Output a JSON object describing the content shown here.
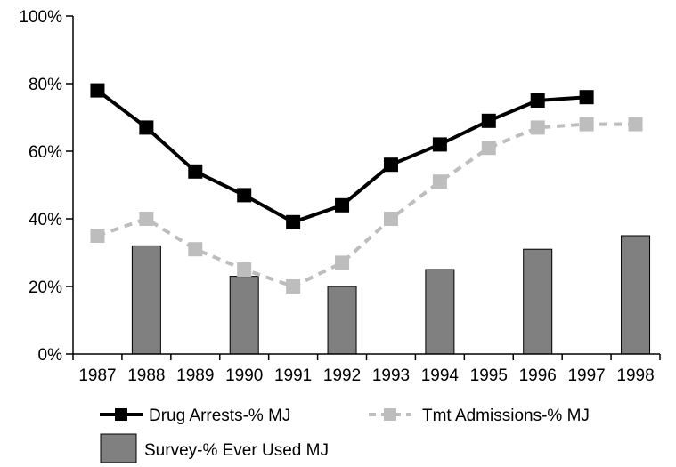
{
  "chart_data": {
    "type": "bar+line",
    "categories": [
      "1987",
      "1988",
      "1989",
      "1990",
      "1991",
      "1992",
      "1993",
      "1994",
      "1995",
      "1996",
      "1997",
      "1998"
    ],
    "ylim": [
      0,
      100
    ],
    "y_ticks": [
      0,
      20,
      40,
      60,
      80,
      100
    ],
    "y_tick_labels": [
      "0%",
      "20%",
      "40%",
      "60%",
      "80%",
      "100%"
    ],
    "grid": false,
    "legend_position": "bottom",
    "series": [
      {
        "name": "Drug Arrests-% MJ",
        "kind": "line",
        "style": "solid",
        "marker": "square",
        "color": "#000000",
        "values": [
          78,
          67,
          54,
          47,
          39,
          44,
          56,
          62,
          69,
          75,
          76,
          null
        ]
      },
      {
        "name": "Tmt Admissions-% MJ",
        "kind": "line",
        "style": "dashed",
        "marker": "square",
        "color": "#bdbdbd",
        "values": [
          35,
          40,
          31,
          25,
          20,
          27,
          40,
          51,
          61,
          67,
          68,
          68
        ]
      },
      {
        "name": "Survey-% Ever Used MJ",
        "kind": "bar",
        "color": "#808080",
        "values": [
          null,
          32,
          null,
          23,
          null,
          20,
          null,
          25,
          null,
          31,
          null,
          35
        ]
      }
    ]
  }
}
